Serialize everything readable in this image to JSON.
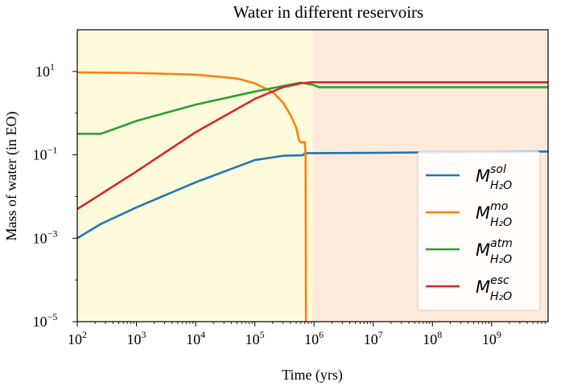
{
  "chart_data": {
    "type": "line",
    "title": "Water in different reservoirs",
    "xlabel": "Time (yrs)",
    "ylabel": "Mass of water (in EO)",
    "xscale": "log",
    "yscale": "log",
    "xlim": [
      100,
      9000000000
    ],
    "ylim": [
      1e-05,
      100
    ],
    "x_ticks": [
      {
        "base": "10",
        "exp": "2",
        "value": 100
      },
      {
        "base": "10",
        "exp": "3",
        "value": 1000
      },
      {
        "base": "10",
        "exp": "4",
        "value": 10000
      },
      {
        "base": "10",
        "exp": "5",
        "value": 100000
      },
      {
        "base": "10",
        "exp": "6",
        "value": 1000000
      },
      {
        "base": "10",
        "exp": "7",
        "value": 10000000
      },
      {
        "base": "10",
        "exp": "8",
        "value": 100000000
      },
      {
        "base": "10",
        "exp": "9",
        "value": 1000000000
      }
    ],
    "y_ticks": [
      {
        "base": "10",
        "exp": "1",
        "value": 10
      },
      {
        "base": "10",
        "exp": "−1",
        "value": 0.1
      },
      {
        "base": "10",
        "exp": "−3",
        "value": 0.001
      },
      {
        "base": "10",
        "exp": "−5",
        "value": 1e-05
      }
    ],
    "grid": false,
    "legend_position": "lower-right",
    "shaded_regions": [
      {
        "from": 100,
        "to": 950000,
        "color": "#fdfbdc"
      },
      {
        "from": 950000,
        "to": 9000000000,
        "color": "#fdeadb"
      }
    ],
    "series": [
      {
        "name_main": "M",
        "name_sup": "sol",
        "name_sub": "H₂O",
        "color": "#1f77b4",
        "x": [
          100,
          250,
          1000,
          10000,
          100000,
          300000,
          650000,
          700000,
          1000000,
          10000000,
          1000000000,
          9000000000
        ],
        "y": [
          0.001,
          0.0022,
          0.0055,
          0.022,
          0.075,
          0.095,
          0.098,
          0.11,
          0.11,
          0.112,
          0.118,
          0.12
        ]
      },
      {
        "name_main": "M",
        "name_sup": "mo",
        "name_sub": "H₂O",
        "color": "#ff7f0e",
        "x": [
          100,
          1000,
          10000,
          50000,
          100000,
          200000,
          300000,
          400000,
          500000,
          560000,
          600000,
          700000,
          720000,
          730000
        ],
        "y": [
          9.5,
          9.2,
          8.4,
          6.8,
          5.2,
          3.2,
          1.8,
          0.9,
          0.45,
          0.22,
          0.2,
          0.2,
          0.1,
          1e-05
        ]
      },
      {
        "name_main": "M",
        "name_sup": "atm",
        "name_sub": "H₂O",
        "color": "#2ca02c",
        "x": [
          100,
          250,
          1000,
          10000,
          100000,
          600000,
          950000,
          1200000,
          10000000,
          9000000000
        ],
        "y": [
          0.32,
          0.32,
          0.65,
          1.6,
          3.3,
          5.4,
          4.8,
          4.2,
          4.2,
          4.2
        ]
      },
      {
        "name_main": "M",
        "name_sup": "esc",
        "name_sub": "H₂O",
        "color": "#d62728",
        "x": [
          100,
          1000,
          10000,
          100000,
          300000,
          600000,
          900000,
          1200000,
          10000000,
          9000000000
        ],
        "y": [
          0.005,
          0.04,
          0.35,
          2.2,
          4.2,
          5.2,
          5.5,
          5.5,
          5.5,
          5.5
        ]
      }
    ]
  }
}
